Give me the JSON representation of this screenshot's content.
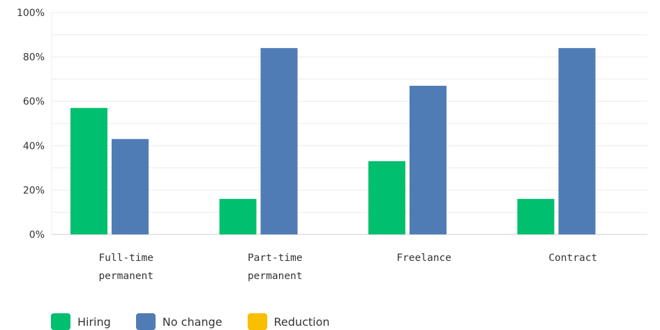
{
  "chart_data": {
    "type": "bar",
    "categories": [
      [
        "Full-time",
        "permanent"
      ],
      [
        "Part-time",
        "permanent"
      ],
      [
        "Freelance"
      ],
      [
        "Contract"
      ]
    ],
    "series": [
      {
        "name": "Hiring",
        "color": "#00bf6f",
        "values": [
          57,
          16,
          33,
          16
        ]
      },
      {
        "name": "No change",
        "color": "#507cb6",
        "values": [
          43,
          84,
          67,
          84
        ]
      },
      {
        "name": "Reduction",
        "color": "#f9be00",
        "values": [
          0,
          0,
          0,
          0
        ]
      }
    ],
    "ylim": [
      0,
      100
    ],
    "yticks": [
      "0%",
      "20%",
      "40%",
      "60%",
      "80%",
      "100%"
    ],
    "grid": true,
    "legend_position": "bottom-left",
    "title": "",
    "xlabel": "",
    "ylabel": ""
  }
}
